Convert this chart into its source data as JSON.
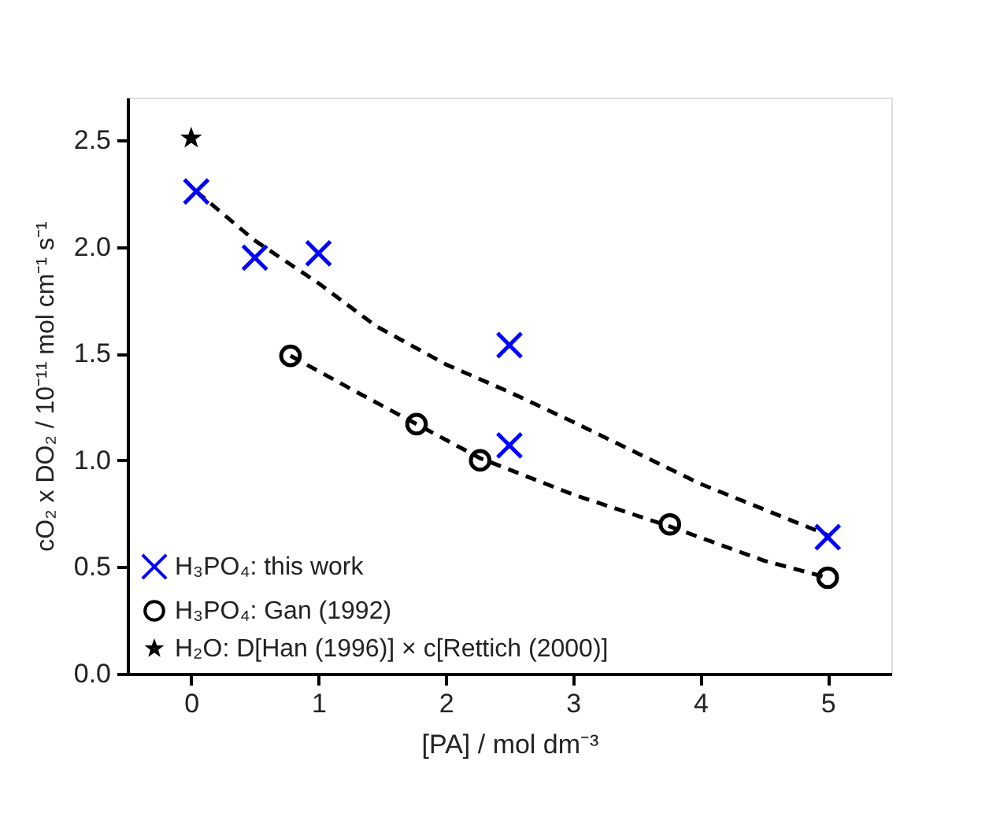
{
  "chart_data": {
    "type": "scatter",
    "xlabel": "[PA] / mol dm⁻³",
    "ylabel": "cO₂ x DO₂ / 10⁻¹¹ mol cm⁻¹ s⁻¹",
    "xlim": [
      -0.5,
      5.5
    ],
    "ylim": [
      0,
      2.7
    ],
    "xticks": [
      0,
      1,
      2,
      3,
      4,
      5
    ],
    "yticks": [
      {
        "value": 0,
        "label": "0.0"
      },
      {
        "value": 0.5,
        "label": "0.5"
      },
      {
        "value": 1,
        "label": "1.0"
      },
      {
        "value": 1.5,
        "label": "1.5"
      },
      {
        "value": 2,
        "label": "2.0"
      },
      {
        "value": 2.5,
        "label": "2.5"
      }
    ],
    "grid": false,
    "legend": "bottom left",
    "series": [
      {
        "name": "H₃PO₄: this work",
        "color": "#0000ff",
        "marker": "cross",
        "x": [
          0.04,
          0.5,
          1.0,
          2.5,
          2.5,
          5.0
        ],
        "values": [
          2.26,
          1.95,
          1.97,
          1.54,
          1.07,
          0.64
        ]
      },
      {
        "name": "H₃PO₄: Gan (1992)",
        "color": "#000000",
        "marker": "circle",
        "x": [
          0.78,
          1.77,
          2.27,
          3.76,
          5.0
        ],
        "values": [
          1.49,
          1.17,
          1.0,
          0.7,
          0.45
        ]
      },
      {
        "name": "H₂O: D[Han (1996)] × c[Rettich (2000)]",
        "color": "#000000",
        "marker": "star",
        "x": [
          0.0
        ],
        "values": [
          2.51
        ]
      },
      {
        "type": "line",
        "color": "#000000",
        "line_style": "dashed",
        "marker": "none",
        "x": [
          0.04,
          0.5,
          1.0,
          1.45,
          2.0,
          2.5,
          3.0,
          4.0,
          5.0
        ],
        "values": [
          2.26,
          2.03,
          1.83,
          1.63,
          1.45,
          1.32,
          1.18,
          0.89,
          0.65
        ]
      },
      {
        "type": "line",
        "color": "#000000",
        "line_style": "dashed",
        "marker": "none",
        "x": [
          0.78,
          1.3,
          1.77,
          2.27,
          3.0,
          3.76,
          4.5,
          5.0
        ],
        "values": [
          1.49,
          1.32,
          1.17,
          1.01,
          0.84,
          0.69,
          0.53,
          0.45
        ]
      }
    ]
  }
}
